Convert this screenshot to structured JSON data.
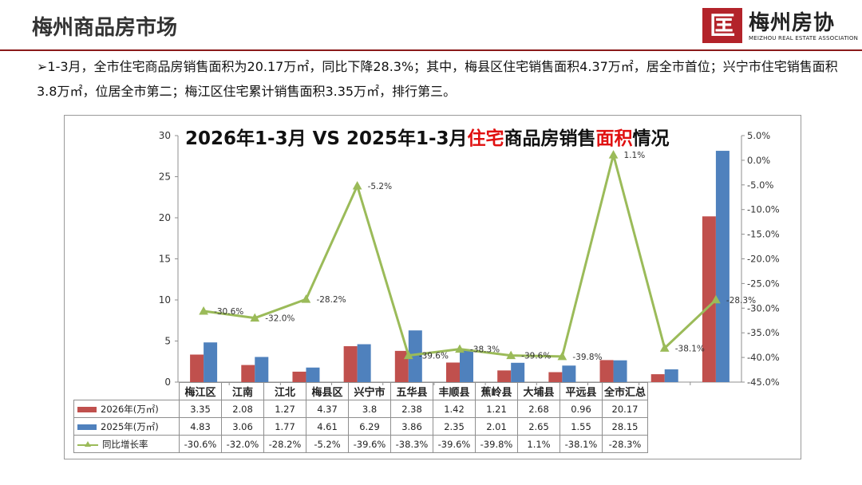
{
  "page": {
    "title": "梅州商品房市场",
    "summary": "➢1-3月，全市住宅商品房销售面积为20.17万㎡，同比下降28.3%；其中，梅县区住宅销售面积4.37万㎡，居全市首位；兴宁市住宅销售面积3.8万㎡，位居全市第二；梅江区住宅累计销售面积3.35万㎡，排行第三。"
  },
  "logo": {
    "mark": "匡",
    "name": "梅州房协",
    "english": "MEIZHOU REAL ESTATE ASSOCIATION"
  },
  "colors": {
    "series2026": "#c0504d",
    "series2025": "#4f81bd",
    "growth": "#9bbb59",
    "title_accent": "#e01010"
  },
  "chart_data": {
    "type": "bar",
    "title_parts": {
      "prefix": "2026年1-3月 VS 2025年1-3月",
      "red1": "住宅",
      "mid": "商品房销售",
      "red2": "面积",
      "suffix": "情况"
    },
    "categories": [
      "梅江区",
      "江南",
      "江北",
      "梅县区",
      "兴宁市",
      "五华县",
      "丰顺县",
      "蕉岭县",
      "大埔县",
      "平远县",
      "全市汇总"
    ],
    "series": [
      {
        "name": "2026年(万㎡)",
        "type": "bar",
        "axis": "left",
        "values": [
          3.35,
          2.08,
          1.27,
          4.37,
          3.8,
          2.38,
          1.42,
          1.21,
          2.68,
          0.96,
          20.17
        ]
      },
      {
        "name": "2025年(万㎡)",
        "type": "bar",
        "axis": "left",
        "values": [
          4.83,
          3.06,
          1.77,
          4.61,
          6.29,
          3.86,
          2.35,
          2.01,
          2.65,
          1.55,
          28.15
        ]
      },
      {
        "name": "同比增长率",
        "type": "line",
        "axis": "right",
        "values": [
          -30.6,
          -32.0,
          -28.2,
          -5.2,
          -39.6,
          -38.3,
          -39.6,
          -39.8,
          1.1,
          -38.1,
          -28.3
        ]
      }
    ],
    "growth_labels": [
      "-30.6%",
      "-32.0%",
      "-28.2%",
      "-5.2%",
      "-39.6%",
      "-38.3%",
      "-39.6%",
      "-39.8%",
      "1.1%",
      "-38.1%",
      "-28.3%"
    ],
    "ylim_left": [
      0,
      30
    ],
    "ylim_right": [
      -45,
      5
    ],
    "left_ticks": [
      "30",
      "25",
      "20",
      "15",
      "10",
      "5",
      "0"
    ],
    "right_ticks": [
      "5.0%",
      "0.0%",
      "-5.0%",
      "-10.0%",
      "-15.0%",
      "-20.0%",
      "-25.0%",
      "-30.0%",
      "-35.0%",
      "-40.0%",
      "-45.0%"
    ],
    "table_rows": {
      "r2026": [
        "3.35",
        "2.08",
        "1.27",
        "4.37",
        "3.8",
        "2.38",
        "1.42",
        "1.21",
        "2.68",
        "0.96",
        "20.17"
      ],
      "r2025": [
        "4.83",
        "3.06",
        "1.77",
        "4.61",
        "6.29",
        "3.86",
        "2.35",
        "2.01",
        "2.65",
        "1.55",
        "28.15"
      ],
      "growth": [
        "-30.6%",
        "-32.0%",
        "-28.2%",
        "-5.2%",
        "-39.6%",
        "-38.3%",
        "-39.6%",
        "-39.8%",
        "1.1%",
        "-38.1%",
        "-28.3%"
      ]
    },
    "legend": {
      "s2026": "2026年(万㎡)",
      "s2025": "2025年(万㎡)",
      "growth": "同比增长率"
    },
    "grid": false,
    "legend_position": "data-table-left"
  }
}
